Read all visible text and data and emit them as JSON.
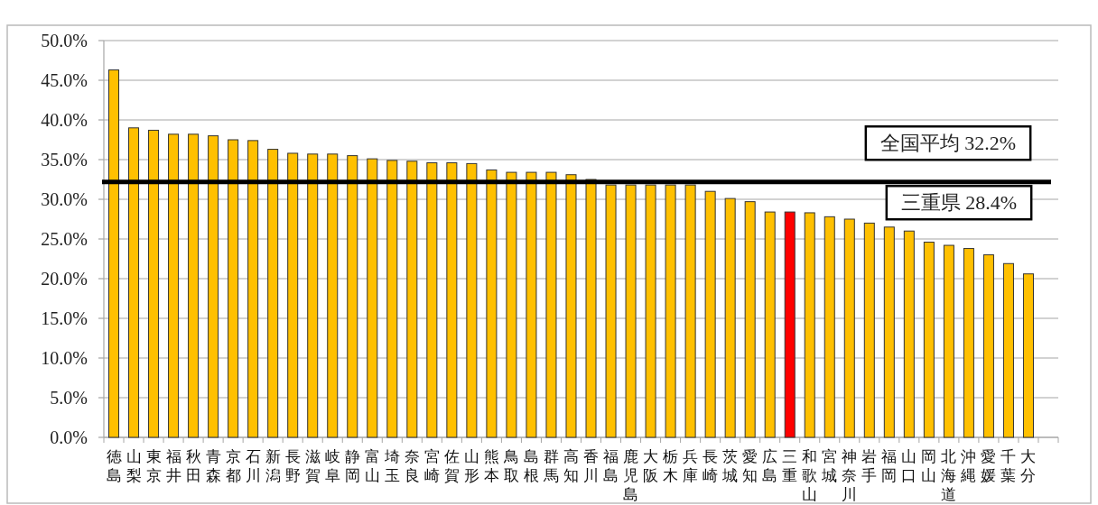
{
  "chart_data": {
    "type": "bar",
    "categories": [
      "徳島",
      "山梨",
      "東京",
      "福井",
      "秋田",
      "青森",
      "京都",
      "石川",
      "新潟",
      "長野",
      "滋賀",
      "岐阜",
      "静岡",
      "富山",
      "埼玉",
      "奈良",
      "宮崎",
      "佐賀",
      "山形",
      "熊本",
      "鳥取",
      "島根",
      "群馬",
      "高知",
      "香川",
      "福島",
      "鹿児島",
      "大阪",
      "栃木",
      "兵庫",
      "長崎",
      "茨城",
      "愛知",
      "広島",
      "三重",
      "和歌山",
      "宮城",
      "神奈川",
      "岩手",
      "福岡",
      "山口",
      "岡山",
      "北海道",
      "沖縄",
      "愛媛",
      "千葉",
      "大分"
    ],
    "values": [
      46.3,
      39.0,
      38.7,
      38.2,
      38.2,
      38.0,
      37.5,
      37.4,
      36.3,
      35.8,
      35.7,
      35.7,
      35.5,
      35.1,
      34.9,
      34.8,
      34.6,
      34.6,
      34.5,
      33.7,
      33.4,
      33.4,
      33.4,
      33.1,
      32.5,
      31.8,
      31.8,
      31.8,
      31.8,
      31.8,
      31.0,
      30.1,
      29.7,
      28.4,
      28.4,
      28.3,
      27.8,
      27.5,
      27.0,
      26.5,
      26.0,
      24.6,
      24.2,
      23.8,
      23.0,
      21.9,
      20.6
    ],
    "colors": [
      "#ffc000",
      "#ffc000",
      "#ffc000",
      "#ffc000",
      "#ffc000",
      "#ffc000",
      "#ffc000",
      "#ffc000",
      "#ffc000",
      "#ffc000",
      "#ffc000",
      "#ffc000",
      "#ffc000",
      "#ffc000",
      "#ffc000",
      "#ffc000",
      "#ffc000",
      "#ffc000",
      "#ffc000",
      "#ffc000",
      "#ffc000",
      "#ffc000",
      "#ffc000",
      "#ffc000",
      "#ffc000",
      "#ffc000",
      "#ffc000",
      "#ffc000",
      "#ffc000",
      "#ffc000",
      "#ffc000",
      "#ffc000",
      "#ffc000",
      "#ffc000",
      "#ff0000",
      "#ffc000",
      "#ffc000",
      "#ffc000",
      "#ffc000",
      "#ffc000",
      "#ffc000",
      "#ffc000",
      "#ffc000",
      "#ffc000",
      "#ffc000",
      "#ffc000",
      "#ffc000"
    ],
    "ylim": [
      0,
      50
    ],
    "yticks": [
      {
        "value": 0,
        "label": "0.0%"
      },
      {
        "value": 5,
        "label": "5.0%"
      },
      {
        "value": 10,
        "label": "10.0%"
      },
      {
        "value": 15,
        "label": "15.0%"
      },
      {
        "value": 20,
        "label": "20.0%"
      },
      {
        "value": 25,
        "label": "25.0%"
      },
      {
        "value": 30,
        "label": "30.0%"
      },
      {
        "value": 35,
        "label": "35.0%"
      },
      {
        "value": 40,
        "label": "40.0%"
      },
      {
        "value": 45,
        "label": "45.0%"
      },
      {
        "value": 50,
        "label": "50.0%"
      }
    ],
    "grid": "y",
    "ref_lines": [
      {
        "axis": "y",
        "value": 32.2,
        "label": "全国平均 32.2%",
        "color": "#000000"
      }
    ],
    "annotations": [
      "三重県 28.4%"
    ]
  }
}
